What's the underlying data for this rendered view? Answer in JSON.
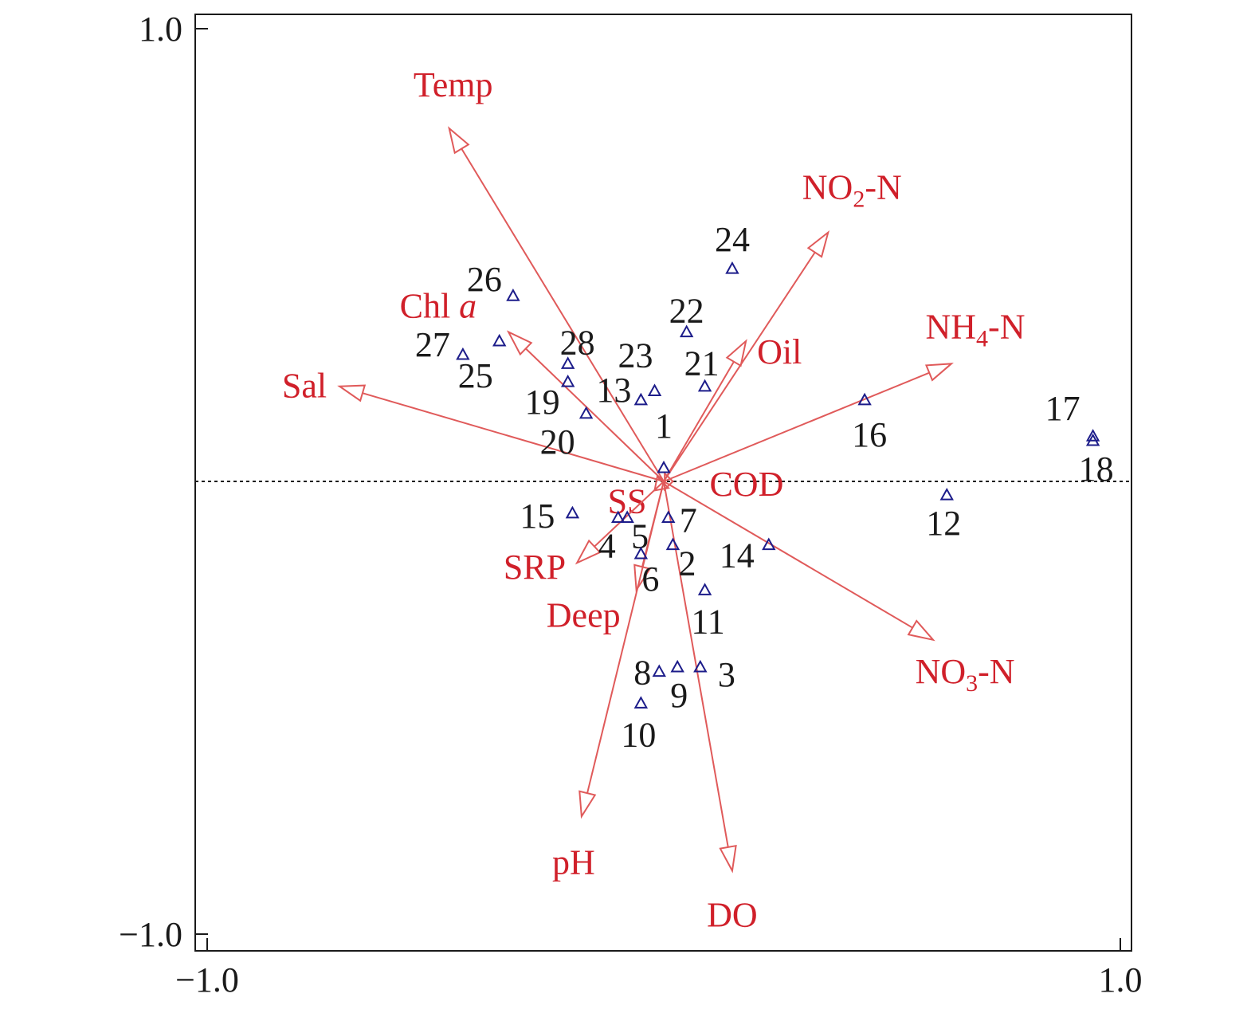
{
  "chart_data": {
    "type": "scatter",
    "subtype": "rda-biplot",
    "title": "",
    "xlabel": "",
    "ylabel": "",
    "xlim": [
      -1.0,
      1.0
    ],
    "ylim": [
      -1.0,
      1.0
    ],
    "x_ticks": [
      {
        "value": -1.0,
        "label": "−1.0"
      },
      {
        "value": 1.0,
        "label": "1.0"
      }
    ],
    "y_ticks": [
      {
        "value": 1.0,
        "label": "1.0"
      },
      {
        "value": -1.0,
        "label": "−1.0"
      }
    ],
    "grid": false,
    "zero_line": "horizontal dotted at y=0",
    "colors": {
      "vectors": "#d0202a",
      "arrow_line": "#e05a5a",
      "sites": "#1c1c8a",
      "text": "#1a1a1a"
    },
    "env_vectors": [
      {
        "name": "Temp",
        "x": -0.47,
        "y": 0.78
      },
      {
        "name": "NO2-N",
        "name_base": "NO",
        "name_sub": "2",
        "name_rest": "-N",
        "x": 0.36,
        "y": 0.55
      },
      {
        "name": "NH4-N",
        "name_base": "NH",
        "name_sub": "4",
        "name_rest": "-N",
        "x": 0.63,
        "y": 0.26
      },
      {
        "name": "Oil",
        "x": 0.18,
        "y": 0.31
      },
      {
        "name": "Chl a",
        "name_base": "Chl ",
        "name_italic": "a",
        "x": -0.34,
        "y": 0.33
      },
      {
        "name": "Sal",
        "x": -0.71,
        "y": 0.21
      },
      {
        "name": "SS",
        "x": -0.02,
        "y": -0.02
      },
      {
        "name": "COD",
        "x": 0.02,
        "y": 0.0
      },
      {
        "name": "SRP",
        "x": -0.19,
        "y": -0.18
      },
      {
        "name": "Deep",
        "x": -0.06,
        "y": -0.24
      },
      {
        "name": "pH",
        "x": -0.18,
        "y": -0.74
      },
      {
        "name": "DO",
        "x": 0.15,
        "y": -0.86
      },
      {
        "name": "NO3-N",
        "name_base": "NO",
        "name_sub": "3",
        "name_rest": "-N",
        "x": 0.59,
        "y": -0.35
      }
    ],
    "sites": [
      {
        "label": "1",
        "x": 0.0,
        "y": 0.03
      },
      {
        "label": "2",
        "x": 0.02,
        "y": -0.14
      },
      {
        "label": "3",
        "x": 0.08,
        "y": -0.41
      },
      {
        "label": "4",
        "x": -0.1,
        "y": -0.08
      },
      {
        "label": "5",
        "x": -0.08,
        "y": -0.08
      },
      {
        "label": "6",
        "x": -0.05,
        "y": -0.16
      },
      {
        "label": "7",
        "x": 0.01,
        "y": -0.08
      },
      {
        "label": "8",
        "x": -0.01,
        "y": -0.42
      },
      {
        "label": "9",
        "x": 0.03,
        "y": -0.41
      },
      {
        "label": "10",
        "x": -0.05,
        "y": -0.49
      },
      {
        "label": "11",
        "x": 0.09,
        "y": -0.24
      },
      {
        "label": "12",
        "x": 0.62,
        "y": -0.03
      },
      {
        "label": "13",
        "x": -0.05,
        "y": 0.18
      },
      {
        "label": "14",
        "x": 0.23,
        "y": -0.14
      },
      {
        "label": "15",
        "x": -0.2,
        "y": -0.07
      },
      {
        "label": "16",
        "x": 0.44,
        "y": 0.18
      },
      {
        "label": "17",
        "x": 0.94,
        "y": 0.1
      },
      {
        "label": "18",
        "x": 0.94,
        "y": 0.09
      },
      {
        "label": "19",
        "x": -0.21,
        "y": 0.22
      },
      {
        "label": "20",
        "x": -0.17,
        "y": 0.15
      },
      {
        "label": "21",
        "x": 0.09,
        "y": 0.21
      },
      {
        "label": "22",
        "x": 0.05,
        "y": 0.33
      },
      {
        "label": "23",
        "x": -0.02,
        "y": 0.2
      },
      {
        "label": "24",
        "x": 0.15,
        "y": 0.47
      },
      {
        "label": "25",
        "x": -0.36,
        "y": 0.31
      },
      {
        "label": "26",
        "x": -0.33,
        "y": 0.41
      },
      {
        "label": "27",
        "x": -0.44,
        "y": 0.28
      },
      {
        "label": "28",
        "x": -0.21,
        "y": 0.26
      }
    ]
  }
}
